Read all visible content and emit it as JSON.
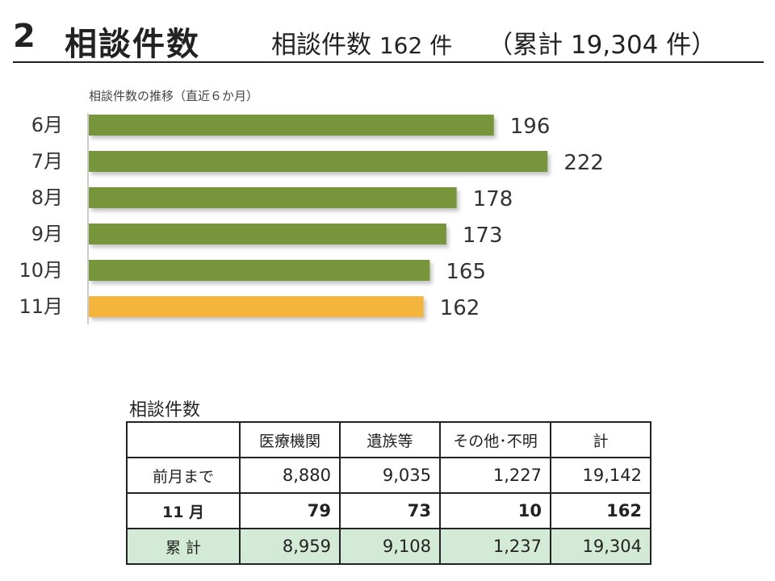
{
  "header": {
    "number": "2",
    "title": "相談件数",
    "summary_label": "相談件数",
    "summary_value": "162 件",
    "cumulative": "（累計 19,304 件）"
  },
  "chart_data": {
    "type": "bar",
    "orientation": "horizontal",
    "title": "相談件数の推移（直近６か月）",
    "categories": [
      "6月",
      "7月",
      "8月",
      "9月",
      "10月",
      "11月"
    ],
    "values": [
      196,
      222,
      178,
      173,
      165,
      162
    ],
    "value_labels": [
      "196",
      "222",
      "178",
      "173",
      "165",
      "162"
    ],
    "xlim": [
      0,
      250
    ],
    "grid": false,
    "colors": [
      "#77953a",
      "#77953a",
      "#77953a",
      "#77953a",
      "#77953a",
      "#f5b53c"
    ]
  },
  "table": {
    "caption": "相談件数",
    "headers": [
      "",
      "医療機関",
      "遺族等",
      "その他･不明",
      "計"
    ],
    "rows": [
      {
        "label": "前月まで",
        "values": [
          "8,880",
          "9,035",
          "1,227",
          "19,142"
        ]
      },
      {
        "label": "11 月",
        "values": [
          "79",
          "73",
          "10",
          "162"
        ]
      },
      {
        "label": "累 計",
        "values": [
          "8,959",
          "9,108",
          "1,237",
          "19,304"
        ]
      }
    ]
  }
}
